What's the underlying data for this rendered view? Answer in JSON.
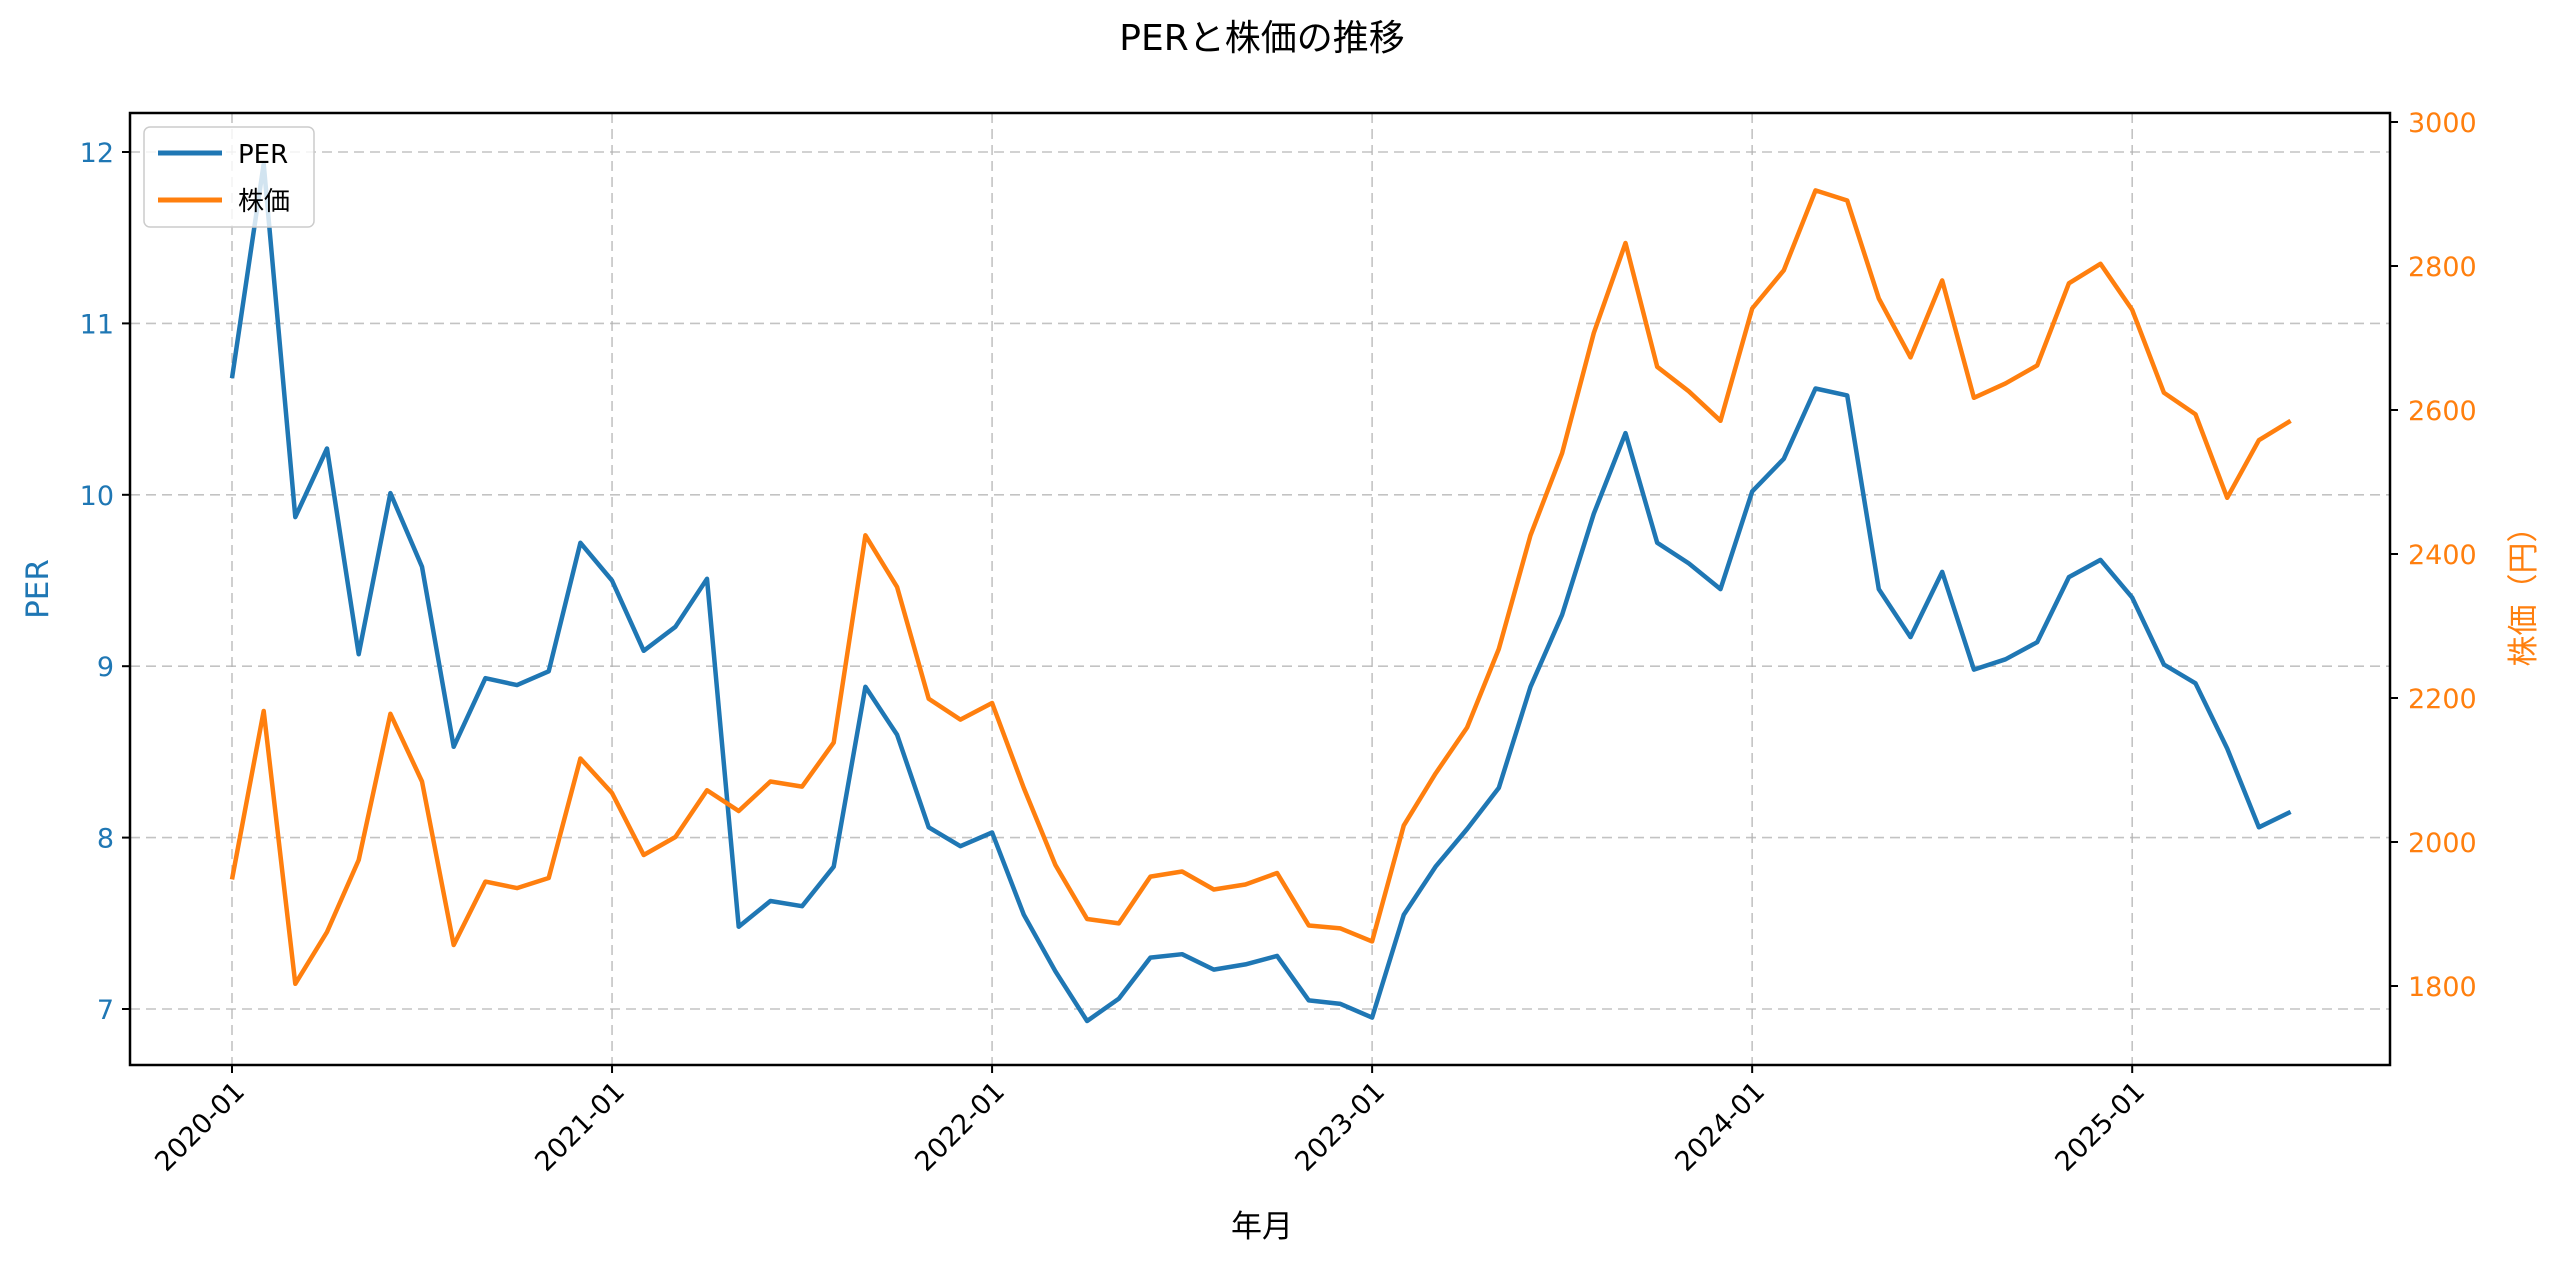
{
  "chart_data": {
    "type": "line",
    "title": "PERと株価の推移",
    "xlabel": "年月",
    "ylabel": "PER",
    "ylabel_right": "株価（円）",
    "ylim": [
      6.67,
      12.2
    ],
    "ylim_right": [
      1685,
      3015
    ],
    "yticks": [
      7,
      8,
      9,
      10,
      11,
      12
    ],
    "yticks_right": [
      1800,
      2000,
      2200,
      2400,
      2600,
      2800,
      3000
    ],
    "xtick_labels": [
      "2020-01",
      "2021-01",
      "2022-01",
      "2023-01",
      "2024-01",
      "2025-01"
    ],
    "grid": true,
    "legend_position": "upper left",
    "colors": {
      "PER": "#1f77b4",
      "株価": "#ff7f0e"
    },
    "x": [
      "2020-01",
      "2020-02",
      "2020-03",
      "2020-04",
      "2020-05",
      "2020-06",
      "2020-07",
      "2020-08",
      "2020-09",
      "2020-10",
      "2020-11",
      "2020-12",
      "2021-01",
      "2021-02",
      "2021-03",
      "2021-04",
      "2021-05",
      "2021-06",
      "2021-07",
      "2021-08",
      "2021-09",
      "2021-10",
      "2021-11",
      "2021-12",
      "2022-01",
      "2022-02",
      "2022-03",
      "2022-04",
      "2022-05",
      "2022-06",
      "2022-07",
      "2022-08",
      "2022-09",
      "2022-10",
      "2022-11",
      "2022-12",
      "2023-01",
      "2023-02",
      "2023-03",
      "2023-04",
      "2023-05",
      "2023-06",
      "2023-07",
      "2023-08",
      "2023-09",
      "2023-10",
      "2023-11",
      "2023-12",
      "2024-01",
      "2024-02",
      "2024-03",
      "2024-04",
      "2024-05",
      "2024-06",
      "2024-07",
      "2024-08",
      "2024-09",
      "2024-10",
      "2024-11",
      "2024-12",
      "2025-01",
      "2025-02",
      "2025-03",
      "2025-04",
      "2025-05",
      "2025-06"
    ],
    "series": [
      {
        "name": "PER",
        "axis": "left",
        "values": [
          10.68,
          11.93,
          9.87,
          10.27,
          9.07,
          10.01,
          9.58,
          8.53,
          8.93,
          8.89,
          8.97,
          9.72,
          9.5,
          9.09,
          9.23,
          9.51,
          7.48,
          7.63,
          7.6,
          7.83,
          8.88,
          8.6,
          8.06,
          7.95,
          8.03,
          7.55,
          7.22,
          6.93,
          7.06,
          7.3,
          7.32,
          7.23,
          7.26,
          7.31,
          7.05,
          7.03,
          6.95,
          7.55,
          7.83,
          8.05,
          8.29,
          8.88,
          9.3,
          9.89,
          10.36,
          9.72,
          9.6,
          9.45,
          10.02,
          10.21,
          10.62,
          10.58,
          9.45,
          9.17,
          9.55,
          8.98,
          9.04,
          9.14,
          9.52,
          9.62,
          9.4,
          9.01,
          8.9,
          8.52,
          8.06,
          8.15
        ]
      },
      {
        "name": "株価",
        "axis": "right",
        "values": [
          1948,
          2182,
          1803,
          1875,
          1975,
          2178,
          2084,
          1857,
          1945,
          1936,
          1950,
          2116,
          2068,
          1982,
          2007,
          2072,
          2043,
          2084,
          2077,
          2138,
          2426,
          2354,
          2199,
          2170,
          2193,
          2075,
          1968,
          1893,
          1887,
          1952,
          1959,
          1934,
          1941,
          1957,
          1884,
          1880,
          1862,
          2023,
          2095,
          2159,
          2268,
          2426,
          2540,
          2707,
          2832,
          2660,
          2626,
          2585,
          2741,
          2794,
          2905,
          2891,
          2755,
          2673,
          2780,
          2617,
          2637,
          2662,
          2776,
          2803,
          2739,
          2624,
          2594,
          2478,
          2558,
          2585
        ]
      }
    ]
  }
}
